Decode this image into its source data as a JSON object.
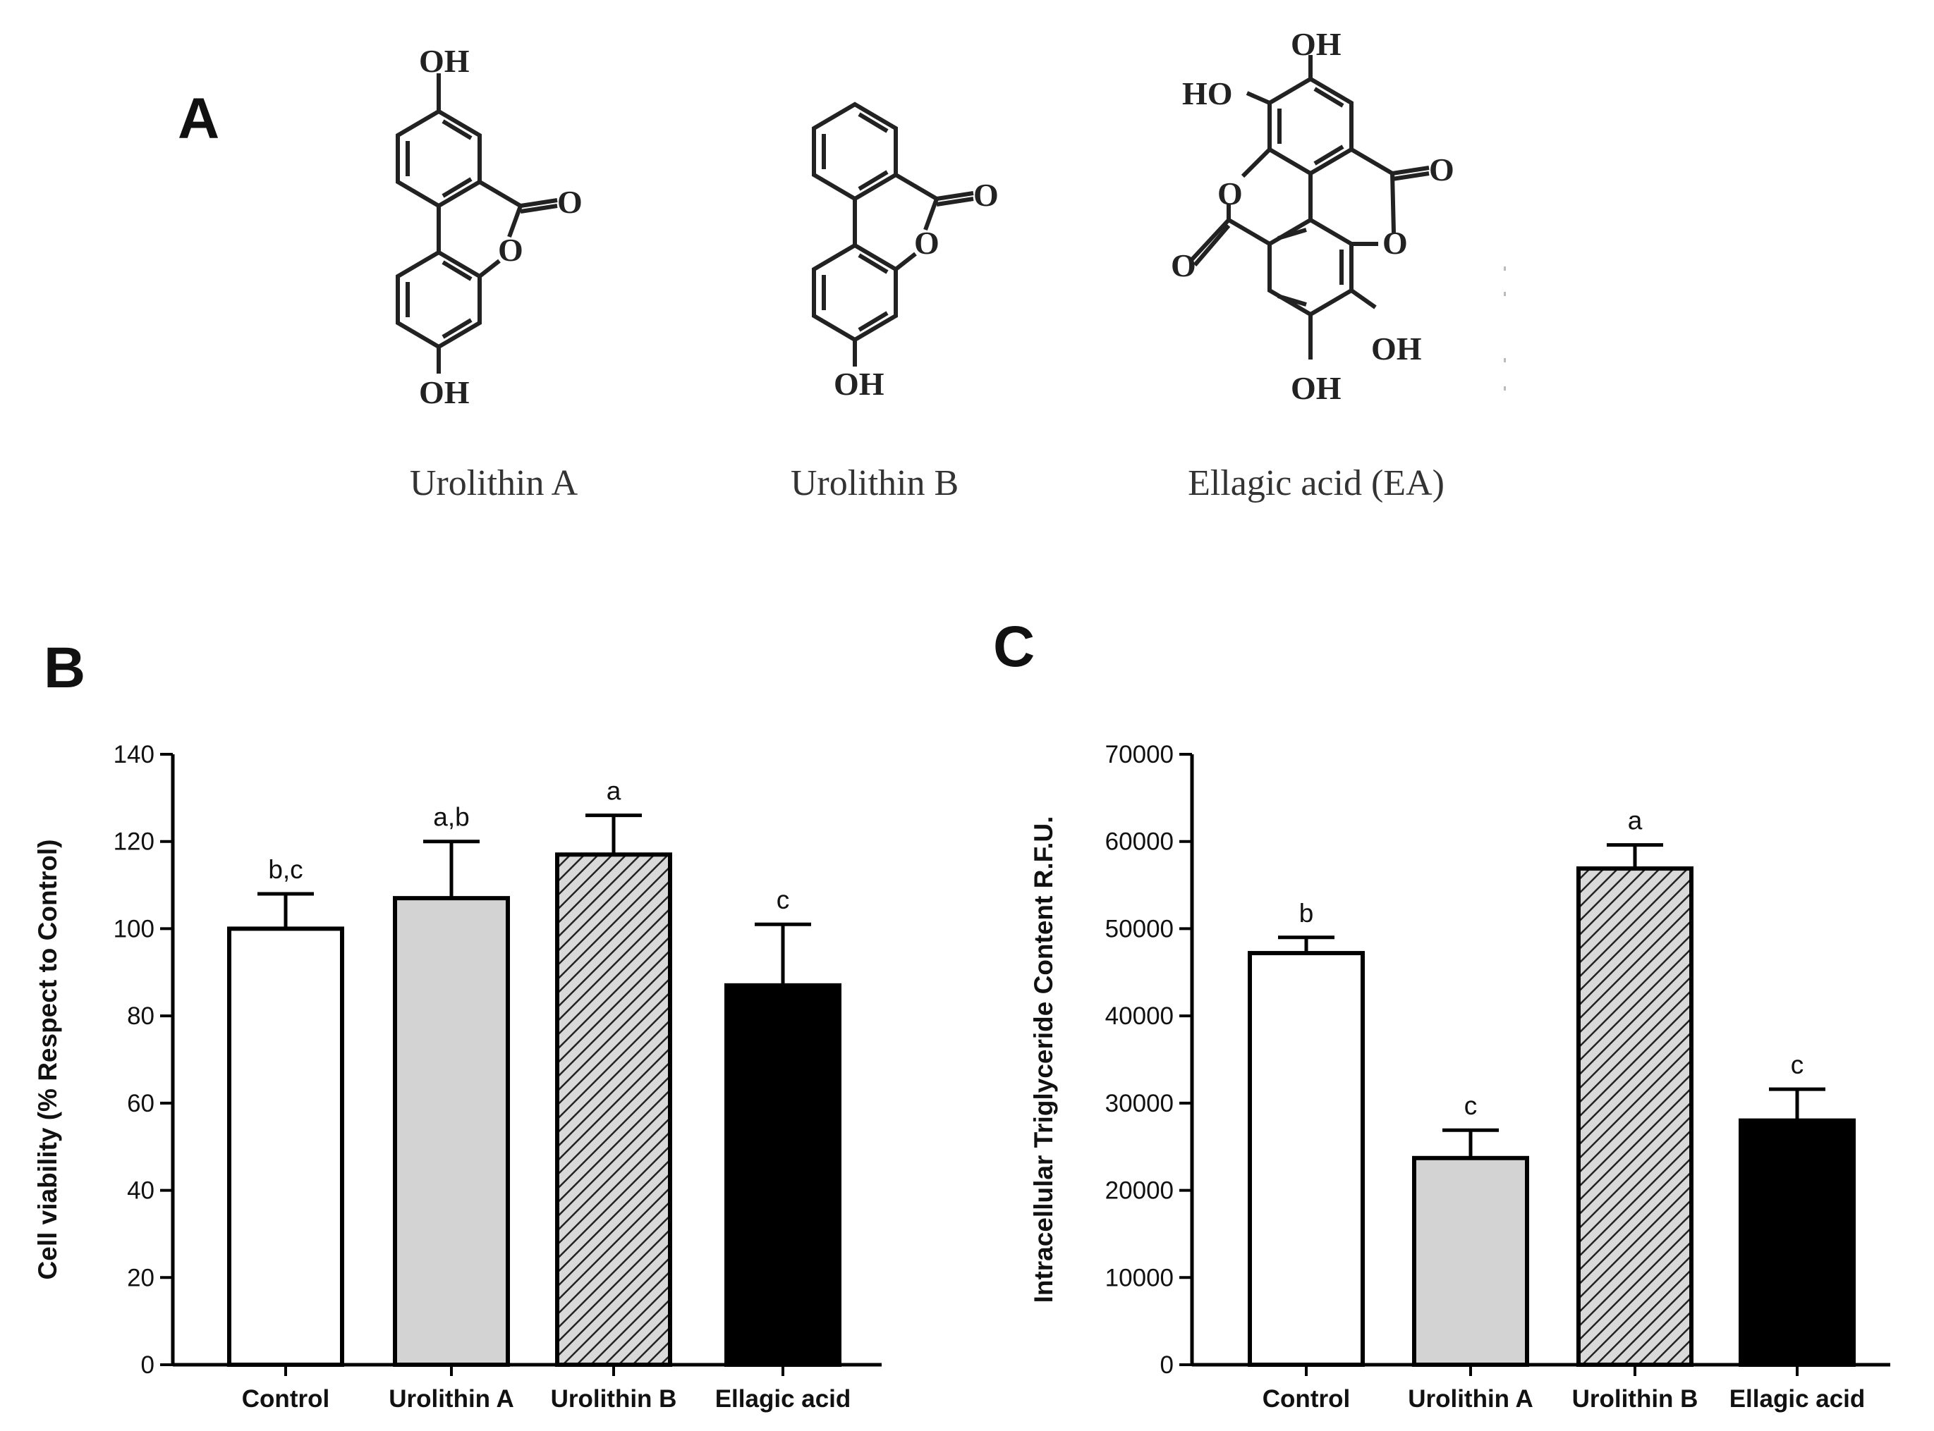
{
  "panels": {
    "a": "A",
    "b": "B",
    "c": "C"
  },
  "chemistry": {
    "atom_oh": "OH",
    "atom_ho": "HO",
    "atom_o": "O",
    "compounds": [
      {
        "name": "Urolithin A"
      },
      {
        "name": "Urolithin B"
      },
      {
        "name": "Ellagic acid (EA)"
      }
    ]
  },
  "chart_data": [
    {
      "type": "bar",
      "panel": "B",
      "categories": [
        "Control",
        "Urolithin A",
        "Urolithin B",
        "Ellagic acid"
      ],
      "values": [
        100,
        107,
        117,
        87
      ],
      "errors": [
        8,
        13,
        9,
        14
      ],
      "significance": [
        "b,c",
        "a,b",
        "a",
        "c"
      ],
      "ylabel": "Cell viability (% Respect to Control)",
      "ylim": [
        0,
        140
      ],
      "yticks": [
        0,
        20,
        40,
        60,
        80,
        100,
        120,
        140
      ],
      "bar_styles": [
        "white",
        "light-gray",
        "hatched-gray",
        "black"
      ],
      "grid": false
    },
    {
      "type": "bar",
      "panel": "C",
      "categories": [
        "Control",
        "Urolithin A",
        "Urolithin B",
        "Ellagic acid"
      ],
      "values": [
        47200,
        23700,
        56900,
        28000
      ],
      "errors": [
        1800,
        3200,
        2700,
        3600
      ],
      "significance": [
        "b",
        "c",
        "a",
        "c"
      ],
      "ylabel": "Intracellular Triglyceride Content R.F.U.",
      "ylim": [
        0,
        70000
      ],
      "yticks": [
        0,
        10000,
        20000,
        30000,
        40000,
        50000,
        60000,
        70000
      ],
      "bar_styles": [
        "white",
        "light-gray",
        "hatched-gray",
        "black"
      ],
      "grid": false
    }
  ]
}
